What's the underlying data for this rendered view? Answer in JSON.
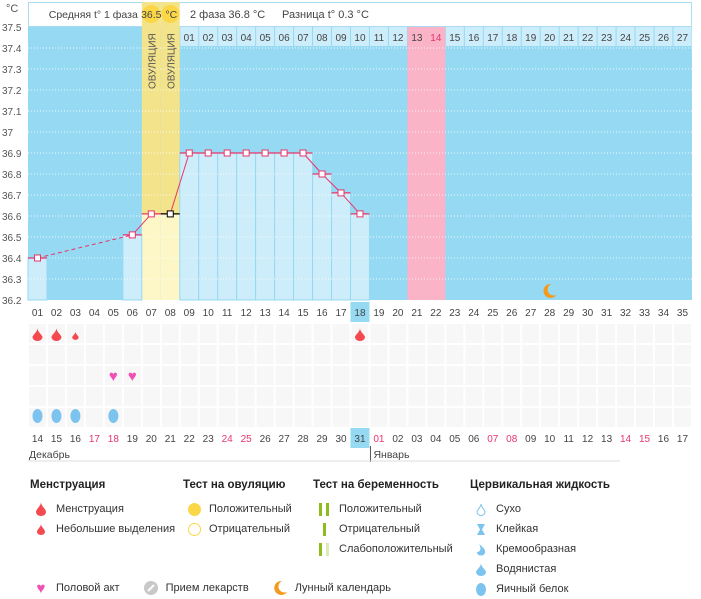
{
  "chart_data": {
    "type": "bar-line",
    "y_unit": "°C",
    "ylim": [
      36.2,
      37.5
    ],
    "yticks": [
      "37.5",
      "37.4",
      "37.3",
      "37.2",
      "37.1",
      "37",
      "36.9",
      "36.8",
      "36.7",
      "36.6",
      "36.5",
      "36.4",
      "36.3",
      "36.2"
    ],
    "grid": true,
    "cycle_days": [
      "01",
      "02",
      "03",
      "04",
      "05",
      "06",
      "07",
      "08",
      "09",
      "10",
      "11",
      "12",
      "13",
      "14",
      "15",
      "16",
      "17",
      "18",
      "19",
      "20",
      "21",
      "22",
      "23",
      "24",
      "25",
      "26",
      "27",
      "28",
      "29",
      "30",
      "31",
      "32",
      "33",
      "34",
      "35"
    ],
    "temperatures": [
      36.4,
      null,
      null,
      null,
      null,
      36.51,
      36.61,
      36.61,
      36.9,
      36.9,
      36.9,
      36.9,
      36.9,
      36.9,
      36.9,
      36.8,
      36.71,
      36.61,
      null,
      null,
      null,
      null,
      null,
      null,
      null,
      null,
      null,
      null,
      null,
      null,
      null,
      null,
      null,
      null,
      null
    ],
    "ovulation_days": [
      7,
      8
    ],
    "ovulation_label": "ОВУЛЯЦИЯ",
    "next_cycle_labels": [
      "01",
      "02",
      "03",
      "04",
      "05",
      "06",
      "07",
      "08",
      "09",
      "10",
      "11",
      "12",
      "13",
      "14",
      "15",
      "16",
      "17",
      "18",
      "19",
      "20",
      "21",
      "22",
      "23",
      "24",
      "25",
      "26",
      "27"
    ],
    "next_cycle_start_day": 9,
    "fertile_highlight_days": [
      21,
      22
    ],
    "current_day": 18,
    "menstruation_days": [
      1,
      2,
      18
    ],
    "spotting_days": [
      3
    ],
    "intercourse_days": [
      5,
      6
    ],
    "egg_white_fluid_days": [
      1,
      2,
      3,
      5
    ],
    "lunar_day": 28,
    "dates": [
      "14",
      "15",
      "16",
      "17",
      "18",
      "19",
      "20",
      "21",
      "22",
      "23",
      "24",
      "25",
      "26",
      "27",
      "28",
      "29",
      "30",
      "31",
      "01",
      "02",
      "03",
      "04",
      "05",
      "06",
      "07",
      "08",
      "09",
      "10",
      "11",
      "12",
      "13",
      "14",
      "15",
      "16",
      "17"
    ],
    "weekend_date_indices": [
      3,
      4,
      10,
      11,
      18,
      24,
      25,
      31,
      32
    ],
    "months": [
      "Декабрь",
      "Январь"
    ]
  },
  "header": {
    "phase1_label": "Средняя t° 1 фаза",
    "phase1_value": "36.5",
    "unit": "°C",
    "phase2": "2 фаза 36.8 °C",
    "diff": "Разница t° 0.3 °C"
  },
  "colors": {
    "bg": "#95d9f3",
    "bar": "#cdedfb",
    "ovul": "#f3e38a",
    "ovulLight": "#fdf7c8",
    "pink": "#fbb3c8",
    "line": "#e8366a",
    "weekend": "#e8366a"
  },
  "legend": {
    "menstruation": {
      "title": "Менструация",
      "items": [
        "Менструация",
        "Небольшие выделения"
      ]
    },
    "ovulation_test": {
      "title": "Тест на овуляцию",
      "items": [
        "Положительный",
        "Отрицательный"
      ]
    },
    "pregnancy_test": {
      "title": "Тест на беременность",
      "items": [
        "Положительный",
        "Отрицательный",
        "Слабоположительный"
      ]
    },
    "cervical": {
      "title": "Цервикальная жидкость",
      "items": [
        "Сухо",
        "Клейкая",
        "Кремообразная",
        "Водянистая",
        "Яичный белок"
      ]
    },
    "other": [
      "Половой акт",
      "Прием лекарств",
      "Лунный календарь"
    ]
  }
}
